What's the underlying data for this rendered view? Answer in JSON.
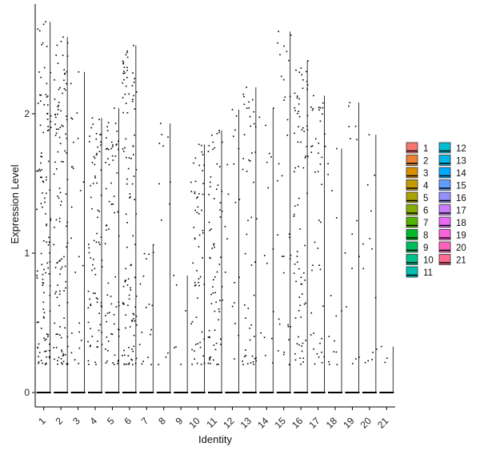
{
  "chart_data": {
    "type": "violin",
    "title": "",
    "xlabel": "Identity",
    "ylabel": "Expression Level",
    "ylim": [
      -0.1,
      2.78
    ],
    "yticks": [
      0,
      1,
      2
    ],
    "categories": [
      "1",
      "2",
      "3",
      "4",
      "5",
      "6",
      "7",
      "8",
      "9",
      "10",
      "11",
      "12",
      "13",
      "14",
      "15",
      "16",
      "17",
      "18",
      "19",
      "20",
      "21"
    ],
    "max_values": [
      2.66,
      2.55,
      2.3,
      1.97,
      2.04,
      2.49,
      1.06,
      1.93,
      0.84,
      1.78,
      1.88,
      2.03,
      2.19,
      2.04,
      2.59,
      2.38,
      2.13,
      1.75,
      2.08,
      1.85,
      0.33
    ],
    "point_density": [
      120,
      120,
      25,
      80,
      70,
      110,
      18,
      12,
      6,
      60,
      70,
      20,
      50,
      16,
      35,
      80,
      45,
      15,
      15,
      14,
      3
    ],
    "legend": {
      "position": "right",
      "entries": [
        {
          "label": "1",
          "color": "#F8766D"
        },
        {
          "label": "2",
          "color": "#EB8335"
        },
        {
          "label": "3",
          "color": "#DA8F00"
        },
        {
          "label": "4",
          "color": "#C49A00"
        },
        {
          "label": "5",
          "color": "#A9A400"
        },
        {
          "label": "6",
          "color": "#86AC00"
        },
        {
          "label": "7",
          "color": "#53B400"
        },
        {
          "label": "8",
          "color": "#00B929"
        },
        {
          "label": "9",
          "color": "#00BD5C"
        },
        {
          "label": "10",
          "color": "#00C08B"
        },
        {
          "label": "11",
          "color": "#00C0B2"
        },
        {
          "label": "12",
          "color": "#00BDD0"
        },
        {
          "label": "13",
          "color": "#00B6EB"
        },
        {
          "label": "14",
          "color": "#00A9FF"
        },
        {
          "label": "15",
          "color": "#619CFF"
        },
        {
          "label": "16",
          "color": "#9590FF"
        },
        {
          "label": "17",
          "color": "#C77CFF"
        },
        {
          "label": "18",
          "color": "#E76BF3"
        },
        {
          "label": "19",
          "color": "#FA62DB"
        },
        {
          "label": "20",
          "color": "#FF62BC"
        },
        {
          "label": "21",
          "color": "#FF6C91"
        }
      ]
    }
  }
}
